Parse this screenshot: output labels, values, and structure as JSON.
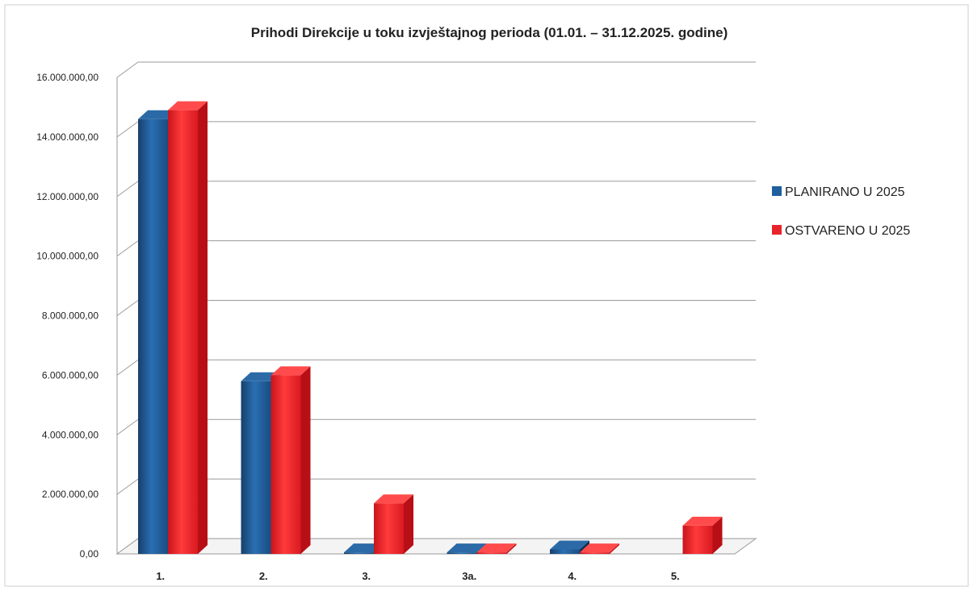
{
  "chart_data": {
    "type": "bar",
    "title": "Prihodi Direkcije u toku izvještajnog perioda  (01.01. – 31.12.2025. godine)",
    "categories": [
      "1.",
      "2.",
      "3.",
      "3a.",
      "4.",
      "5."
    ],
    "series": [
      {
        "name": "PLANIRANO U 2025",
        "color": "#1f5f9e",
        "values": [
          14600000,
          5800000,
          50000,
          50000,
          150000,
          0
        ]
      },
      {
        "name": "OSTVARENO U 2025",
        "color": "#e8242b",
        "values": [
          14900000,
          6000000,
          1700000,
          50000,
          50000,
          950000
        ]
      }
    ],
    "y_ticks": [
      "0,00",
      "2.000.000,00",
      "4.000.000,00",
      "6.000.000,00",
      "8.000.000,00",
      "10.000.000,00",
      "12.000.000,00",
      "14.000.000,00",
      "16.000.000,00"
    ],
    "ylim": [
      0,
      16000000
    ],
    "grid": true,
    "legend_position": "right"
  }
}
